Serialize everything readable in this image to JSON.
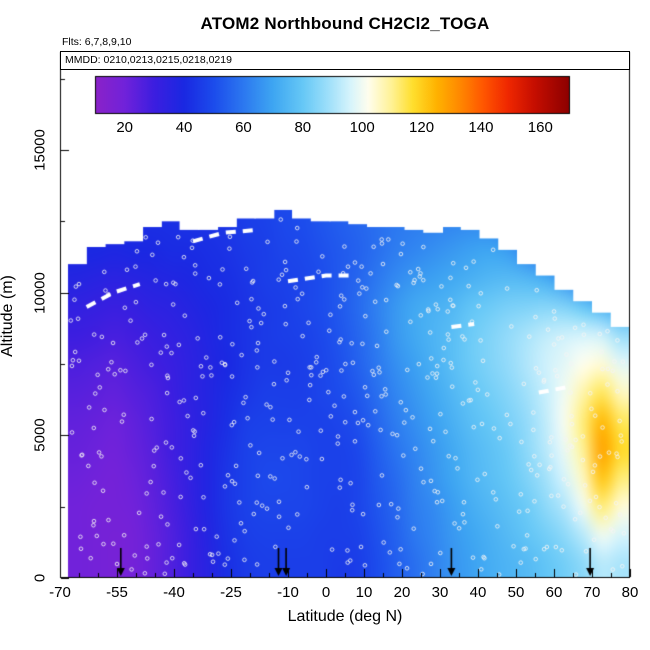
{
  "title": "ATOM2 Northbound CH2Cl2_TOGA",
  "annotations": {
    "flights": "Flts: 6,7,8,9,10",
    "dates": "MMDD: 0210,0213,0215,0218,0219"
  },
  "chart_data": {
    "type": "heatmap",
    "title": "ATOM2 Northbound CH2Cl2_TOGA",
    "xlabel": "Latitude (deg N)",
    "ylabel": "Altitude (m)",
    "x_range": [
      -70,
      80
    ],
    "y_range_m": [
      0,
      18400
    ],
    "x_ticks": [
      -70,
      -55,
      -40,
      -25,
      -10,
      0,
      10,
      20,
      30,
      40,
      50,
      60,
      70,
      80
    ],
    "y_ticks": [
      0,
      5000,
      10000,
      15000
    ],
    "colorbar": {
      "ticks": [
        20,
        40,
        60,
        80,
        100,
        120,
        140,
        160
      ],
      "value_range": [
        10,
        170
      ],
      "stops": [
        [
          10,
          "#8B22C8"
        ],
        [
          20,
          "#7122DA"
        ],
        [
          30,
          "#3C1EE0"
        ],
        [
          40,
          "#1A28E2"
        ],
        [
          50,
          "#1C4CEC"
        ],
        [
          60,
          "#2C78F0"
        ],
        [
          70,
          "#3EA6F2"
        ],
        [
          80,
          "#66C8F6"
        ],
        [
          88,
          "#9ADEFA"
        ],
        [
          96,
          "#D6F4FC"
        ],
        [
          102,
          "#FFFEEE"
        ],
        [
          110,
          "#FFF294"
        ],
        [
          117,
          "#FFDF2E"
        ],
        [
          125,
          "#FFB300"
        ],
        [
          133,
          "#FF8800"
        ],
        [
          141,
          "#FF5500"
        ],
        [
          149,
          "#F02800"
        ],
        [
          158,
          "#C60E00"
        ],
        [
          170,
          "#8B0000"
        ]
      ]
    },
    "grid": {
      "lat_edges_range": [
        -68,
        80
      ],
      "n_lat_cols": 30,
      "lat_centers_deg": [
        -65.5,
        -60.6,
        -55.7,
        -50.7,
        -45.8,
        -40.9,
        -35.9,
        -31.0,
        -26.1,
        -21.1,
        -16.2,
        -11.3,
        -6.3,
        -1.4,
        3.5,
        8.5,
        13.4,
        18.3,
        23.3,
        28.2,
        33.1,
        38.1,
        43.0,
        47.9,
        52.9,
        57.8,
        62.7,
        67.7,
        72.6,
        77.5
      ],
      "alt_centers_m": [
        500,
        1500,
        2500,
        3500,
        4500,
        5500,
        6500,
        7500,
        8500,
        9500,
        10500,
        11500,
        12500
      ],
      "values": [
        [
          20,
          19,
          18,
          19,
          22,
          26,
          31,
          36,
          42,
          45,
          46,
          46,
          46,
          46,
          45,
          46,
          50,
          54,
          58,
          62,
          66,
          69,
          72,
          74,
          76,
          79,
          82,
          86,
          92,
          90
        ],
        [
          20,
          19,
          18,
          19,
          22,
          26,
          31,
          37,
          43,
          46,
          47,
          47,
          47,
          46,
          46,
          47,
          51,
          55,
          60,
          63,
          67,
          70,
          73,
          76,
          79,
          82,
          86,
          92,
          100,
          96
        ],
        [
          20,
          19,
          19,
          20,
          23,
          27,
          32,
          38,
          44,
          47,
          48,
          48,
          48,
          47,
          46,
          48,
          52,
          56,
          61,
          64,
          68,
          72,
          75,
          78,
          81,
          86,
          91,
          100,
          112,
          104
        ],
        [
          21,
          20,
          19,
          21,
          24,
          28,
          33,
          38,
          44,
          47,
          49,
          49,
          48,
          47,
          47,
          48,
          53,
          57,
          62,
          66,
          70,
          74,
          77,
          80,
          84,
          89,
          96,
          106,
          122,
          112
        ],
        [
          22,
          21,
          20,
          22,
          25,
          29,
          33,
          38,
          43,
          47,
          48,
          48,
          48,
          47,
          47,
          49,
          54,
          59,
          63,
          67,
          71,
          75,
          78,
          81,
          86,
          92,
          99,
          110,
          128,
          118
        ],
        [
          23,
          22,
          21,
          23,
          26,
          29,
          33,
          37,
          42,
          46,
          47,
          47,
          47,
          47,
          48,
          51,
          56,
          61,
          65,
          69,
          73,
          77,
          80,
          83,
          87,
          93,
          101,
          112,
          124,
          114
        ],
        [
          25,
          24,
          23,
          25,
          27,
          30,
          34,
          37,
          41,
          44,
          46,
          46,
          46,
          48,
          50,
          53,
          58,
          63,
          67,
          71,
          75,
          79,
          82,
          85,
          89,
          94,
          100,
          108,
          114,
          106
        ],
        [
          27,
          26,
          25,
          27,
          29,
          31,
          34,
          37,
          40,
          43,
          45,
          45,
          46,
          48,
          51,
          55,
          60,
          65,
          69,
          73,
          77,
          81,
          84,
          87,
          91,
          95,
          98,
          102,
          104,
          98
        ],
        [
          30,
          29,
          28,
          29,
          31,
          33,
          35,
          38,
          41,
          43,
          45,
          46,
          47,
          49,
          52,
          56,
          61,
          67,
          71,
          74,
          77,
          81,
          84,
          87,
          90,
          93,
          95,
          96,
          95,
          88
        ],
        [
          33,
          32,
          31,
          32,
          34,
          35,
          37,
          39,
          41,
          43,
          45,
          46,
          48,
          50,
          53,
          57,
          62,
          67,
          71,
          73,
          75,
          79,
          81,
          83,
          84,
          85,
          84,
          80,
          74,
          70
        ],
        [
          37,
          36,
          35,
          36,
          37,
          38,
          39,
          41,
          42,
          44,
          46,
          47,
          48,
          50,
          53,
          56,
          60,
          64,
          67,
          69,
          71,
          73,
          75,
          76,
          75,
          72,
          66,
          58,
          52,
          48
        ],
        [
          40,
          40,
          39,
          40,
          40,
          41,
          41,
          42,
          43,
          45,
          46,
          48,
          49,
          51,
          53,
          55,
          58,
          61,
          63,
          65,
          67,
          69,
          70,
          68,
          62,
          55,
          50,
          45,
          42,
          40
        ],
        [
          42,
          42,
          42,
          42,
          42,
          42,
          43,
          43,
          44,
          46,
          47,
          49,
          50,
          52,
          54,
          56,
          58,
          60,
          61,
          62,
          63,
          64,
          63,
          60,
          55,
          50,
          46,
          42,
          40,
          38
        ]
      ],
      "top_boundary_m": [
        11000,
        11600,
        11700,
        11800,
        12300,
        12500,
        12200,
        12200,
        12300,
        12600,
        12600,
        12900,
        12600,
        12500,
        12500,
        12400,
        12300,
        12300,
        12200,
        12100,
        12300,
        12200,
        11900,
        11500,
        11000,
        10600,
        10100,
        9700,
        9300,
        8800
      ]
    },
    "tropopause_dashes": [
      [
        [
          -63,
          9500
        ],
        [
          -56,
          10000
        ],
        [
          -49,
          10300
        ]
      ],
      [
        [
          -35,
          11800
        ],
        [
          -27,
          12100
        ],
        [
          -18,
          12200
        ]
      ],
      [
        [
          -10,
          10400
        ],
        [
          0,
          10600
        ],
        [
          6,
          10600
        ]
      ],
      [
        [
          33,
          8800
        ],
        [
          39,
          8900
        ]
      ],
      [
        [
          56,
          6500
        ],
        [
          64,
          6700
        ]
      ]
    ],
    "flight_arrows_lat": [
      -54,
      -12.5,
      -10.5,
      33,
      69.5
    ],
    "markers": {
      "style": "open-circle",
      "stroke_color": "#F2F2F2",
      "approx_count": 520
    }
  }
}
